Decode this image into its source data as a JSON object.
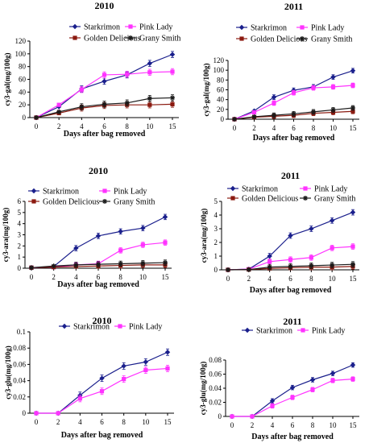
{
  "chart_data": [
    {
      "type": "line",
      "title": "2010",
      "xlabel": "Days after bag removed",
      "ylabel": "cy3-gal(mg/100g)",
      "categories": [
        "0",
        "2",
        "4",
        "6",
        "8",
        "10",
        "15"
      ],
      "ylim": [
        0,
        120
      ],
      "yticks": [
        "0",
        "20",
        "40",
        "60",
        "80",
        "100",
        "120"
      ],
      "legend": "top",
      "series": [
        {
          "name": "Starkrimon",
          "values": [
            0,
            17,
            45,
            57,
            67,
            85,
            99
          ]
        },
        {
          "name": "Pink Lady",
          "values": [
            0,
            20,
            44,
            67,
            68,
            71,
            72
          ]
        },
        {
          "name": "Golden Delicious",
          "values": [
            0,
            7,
            15,
            19,
            20,
            20,
            21
          ]
        },
        {
          "name": "Grany Smith",
          "values": [
            0,
            9,
            17,
            21,
            23,
            30,
            31
          ]
        }
      ]
    },
    {
      "type": "line",
      "title": "2011",
      "xlabel": "Days after bag removed",
      "ylabel": "cy3-gal(mg/100g)",
      "categories": [
        "0",
        "2",
        "4",
        "6",
        "8",
        "10",
        "15"
      ],
      "ylim": [
        0,
        120
      ],
      "yticks": [
        "0",
        "20",
        "40",
        "60",
        "80",
        "100",
        "120"
      ],
      "legend": "top",
      "series": [
        {
          "name": "Starkrimon",
          "values": [
            0,
            17,
            45,
            59,
            66,
            86,
            99
          ]
        },
        {
          "name": "Pink Lady",
          "values": [
            0,
            14,
            33,
            54,
            64,
            66,
            69
          ]
        },
        {
          "name": "Golden Delicious",
          "values": [
            0,
            4,
            6,
            8,
            12,
            14,
            16
          ]
        },
        {
          "name": "Grany Smith",
          "values": [
            0,
            5,
            8,
            11,
            15,
            19,
            23
          ]
        }
      ]
    },
    {
      "type": "line",
      "title": "2010",
      "xlabel": "Days after bag removed",
      "ylabel": "cy3-ara(mg/100g)",
      "categories": [
        "0",
        "2",
        "4",
        "6",
        "8",
        "10",
        "15"
      ],
      "ylim": [
        0,
        6
      ],
      "yticks": [
        "0",
        "1",
        "2",
        "3",
        "4",
        "5",
        "6"
      ],
      "legend": "top",
      "series": [
        {
          "name": "Starkrimon",
          "values": [
            0.05,
            0.15,
            1.8,
            2.9,
            3.3,
            3.6,
            4.6
          ]
        },
        {
          "name": "Pink Lady",
          "values": [
            0.05,
            0.1,
            0.3,
            0.4,
            1.6,
            2.1,
            2.3
          ]
        },
        {
          "name": "Golden Delicious",
          "values": [
            0.05,
            0.1,
            0.15,
            0.2,
            0.25,
            0.3,
            0.3
          ]
        },
        {
          "name": "Grany Smith",
          "values": [
            0.05,
            0.2,
            0.3,
            0.35,
            0.4,
            0.45,
            0.5
          ]
        }
      ]
    },
    {
      "type": "line",
      "title": "2011",
      "xlabel": "Days after bag removed",
      "ylabel": "cy3-ara(mg/100g)",
      "categories": [
        "0",
        "2",
        "4",
        "6",
        "8",
        "10",
        "15"
      ],
      "ylim": [
        0,
        5
      ],
      "yticks": [
        "0",
        "1",
        "2",
        "3",
        "4",
        "5"
      ],
      "legend": "top",
      "series": [
        {
          "name": "Starkrimon",
          "values": [
            0,
            0.05,
            1.0,
            2.5,
            3.0,
            3.6,
            4.2
          ]
        },
        {
          "name": "Pink Lady",
          "values": [
            0,
            0.05,
            0.6,
            0.75,
            0.9,
            1.6,
            1.7
          ]
        },
        {
          "name": "Golden Delicious",
          "values": [
            0,
            0.02,
            0.1,
            0.15,
            0.2,
            0.2,
            0.25
          ]
        },
        {
          "name": "Grany Smith",
          "values": [
            0,
            0.02,
            0.2,
            0.25,
            0.3,
            0.35,
            0.4
          ]
        }
      ]
    },
    {
      "type": "line",
      "title": "2010",
      "xlabel": "Days after bag removed",
      "ylabel": "cy3-glu(mg/100g)",
      "categories": [
        "0",
        "2",
        "4",
        "6",
        "8",
        "10",
        "15"
      ],
      "ylim": [
        0,
        0.1
      ],
      "yticks": [
        "0",
        "0.02",
        "0.04",
        "0.06",
        "0.08",
        "0.1"
      ],
      "legend": "top",
      "series": [
        {
          "name": "Starkrimon",
          "values": [
            0,
            0,
            0.022,
            0.043,
            0.058,
            0.063,
            0.075
          ]
        },
        {
          "name": "Pink Lady",
          "values": [
            0,
            0,
            0.018,
            0.027,
            0.042,
            0.053,
            0.055
          ]
        }
      ]
    },
    {
      "type": "line",
      "title": "2011",
      "xlabel": "Days after bag removed",
      "ylabel": "cy3-glu(mg/100g)",
      "categories": [
        "0",
        "2",
        "4",
        "6",
        "8",
        "10",
        "15"
      ],
      "ylim": [
        0,
        0.08
      ],
      "yticks": [
        "0",
        "0.02",
        "0.04",
        "0.06",
        "0.08"
      ],
      "legend": "top",
      "series": [
        {
          "name": "Starkrimon",
          "values": [
            0,
            0,
            0.022,
            0.041,
            0.052,
            0.061,
            0.073
          ]
        },
        {
          "name": "Pink Lady",
          "values": [
            0,
            0,
            0.015,
            0.027,
            0.038,
            0.051,
            0.053
          ]
        }
      ]
    }
  ],
  "style": {
    "series_colors": [
      "#1a1f8c",
      "#ff33ff",
      "#8b1a10",
      "#1a1a1a"
    ],
    "series_markers": [
      "diamond",
      "square",
      "square",
      "star"
    ]
  }
}
